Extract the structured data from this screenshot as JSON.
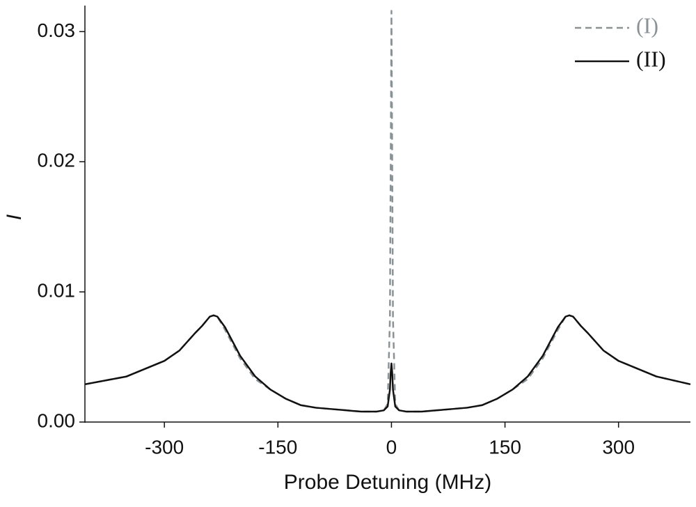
{
  "chart_data": {
    "type": "line",
    "xlabel": "Probe Detuning (MHz)",
    "ylabel": "I",
    "x": [
      -405,
      -350,
      -300,
      -280,
      -260,
      -250,
      -240,
      -235,
      -230,
      -220,
      -210,
      -200,
      -180,
      -160,
      -140,
      -120,
      -100,
      -80,
      -60,
      -40,
      -20,
      -10,
      -5,
      -2,
      -1,
      0,
      1,
      2,
      5,
      10,
      20,
      40,
      60,
      80,
      100,
      120,
      140,
      160,
      180,
      200,
      210,
      220,
      230,
      235,
      240,
      250,
      260,
      280,
      300,
      350,
      395
    ],
    "series": [
      {
        "name": "(I)",
        "color": "#8a9296",
        "dashed": true,
        "values": [
          0.0029,
          0.0035,
          0.0047,
          0.0055,
          0.0068,
          0.0074,
          0.0081,
          0.0082,
          0.0081,
          0.0071,
          0.006,
          0.0049,
          0.0033,
          0.0025,
          0.0018,
          0.0013,
          0.0011,
          0.001,
          0.0009,
          0.0008,
          0.0008,
          0.0009,
          0.0014,
          0.008,
          0.02,
          0.0316,
          0.02,
          0.008,
          0.0014,
          0.0009,
          0.0008,
          0.0008,
          0.0009,
          0.001,
          0.0011,
          0.0013,
          0.0018,
          0.0025,
          0.0033,
          0.0049,
          0.006,
          0.0071,
          0.0081,
          0.0082,
          0.0081,
          0.0074,
          0.0068,
          0.0055,
          0.0047,
          0.0035,
          0.0029
        ]
      },
      {
        "name": "(II)",
        "color": "#111111",
        "dashed": false,
        "values": [
          0.0029,
          0.0035,
          0.0047,
          0.0055,
          0.0068,
          0.0074,
          0.0081,
          0.0082,
          0.0081,
          0.0073,
          0.0062,
          0.0051,
          0.0035,
          0.0025,
          0.0018,
          0.0013,
          0.0011,
          0.001,
          0.0009,
          0.0008,
          0.0008,
          0.0009,
          0.0012,
          0.0025,
          0.0038,
          0.0045,
          0.0038,
          0.0025,
          0.0012,
          0.0009,
          0.0008,
          0.0008,
          0.0009,
          0.001,
          0.0011,
          0.0013,
          0.0018,
          0.0025,
          0.0035,
          0.0051,
          0.0062,
          0.0073,
          0.0081,
          0.0082,
          0.0081,
          0.0074,
          0.0068,
          0.0055,
          0.0047,
          0.0035,
          0.0029
        ]
      }
    ],
    "xlim": [
      -405,
      395
    ],
    "ylim": [
      0,
      0.032
    ],
    "xticks": [
      -300,
      -150,
      0,
      150,
      300
    ],
    "yticks": [
      {
        "value": 0,
        "label": "0.00"
      },
      {
        "value": 0.01,
        "label": "0.01"
      },
      {
        "value": 0.02,
        "label": "0.02"
      },
      {
        "value": 0.03,
        "label": "0.03"
      }
    ],
    "legend": "upper right"
  }
}
